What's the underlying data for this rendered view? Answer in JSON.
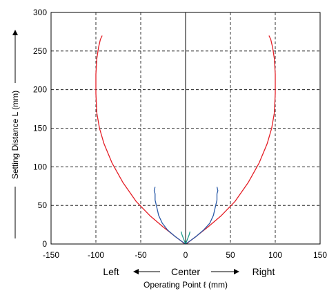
{
  "chart_data": {
    "type": "line",
    "xlabel": "Operating Point ℓ (mm)",
    "ylabel": "Setting Distance L (mm)",
    "xlim": [
      -150,
      150
    ],
    "ylim": [
      0,
      300
    ],
    "xticks": [
      -150,
      -100,
      -50,
      0,
      50,
      100,
      150
    ],
    "yticks": [
      0,
      50,
      100,
      150,
      200,
      250,
      300
    ],
    "grid": true,
    "direction_labels": {
      "left": "Left",
      "center": "Center",
      "right": "Right"
    },
    "series": [
      {
        "color": "#e41e26",
        "points": [
          [
            -1,
            0
          ],
          [
            -4,
            3
          ],
          [
            -12,
            10
          ],
          [
            -25,
            22
          ],
          [
            -40,
            37
          ],
          [
            -55,
            55
          ],
          [
            -70,
            80
          ],
          [
            -82,
            105
          ],
          [
            -91,
            130
          ],
          [
            -96,
            150
          ],
          [
            -99,
            170
          ],
          [
            -100,
            195
          ],
          [
            -100,
            220
          ],
          [
            -99,
            240
          ],
          [
            -97,
            255
          ],
          [
            -95,
            265
          ],
          [
            -93,
            270
          ]
        ]
      },
      {
        "color": "#e41e26",
        "points": [
          [
            1,
            0
          ],
          [
            4,
            3
          ],
          [
            12,
            10
          ],
          [
            25,
            22
          ],
          [
            40,
            37
          ],
          [
            55,
            55
          ],
          [
            70,
            80
          ],
          [
            82,
            105
          ],
          [
            91,
            130
          ],
          [
            96,
            150
          ],
          [
            99,
            170
          ],
          [
            100,
            195
          ],
          [
            100,
            220
          ],
          [
            99,
            240
          ],
          [
            97,
            255
          ],
          [
            95,
            265
          ],
          [
            93,
            270
          ]
        ]
      },
      {
        "color": "#2b5ba8",
        "points": [
          [
            0,
            0
          ],
          [
            -5,
            4
          ],
          [
            -12,
            10
          ],
          [
            -20,
            18
          ],
          [
            -26,
            27
          ],
          [
            -30,
            37
          ],
          [
            -32,
            47
          ],
          [
            -34,
            57
          ],
          [
            -34,
            65
          ],
          [
            -35,
            69
          ],
          [
            -34,
            74
          ]
        ]
      },
      {
        "color": "#2b5ba8",
        "points": [
          [
            0,
            0
          ],
          [
            5,
            4
          ],
          [
            12,
            10
          ],
          [
            20,
            18
          ],
          [
            27,
            27
          ],
          [
            31,
            37
          ],
          [
            33,
            47
          ],
          [
            35,
            57
          ],
          [
            35,
            65
          ],
          [
            36,
            69
          ],
          [
            35,
            74
          ]
        ]
      },
      {
        "color": "#1e9e8c",
        "points": [
          [
            -5,
            16
          ],
          [
            -4,
            12
          ],
          [
            -2,
            6
          ],
          [
            0,
            0
          ],
          [
            2,
            6
          ],
          [
            4,
            12
          ],
          [
            5,
            16
          ]
        ]
      }
    ]
  }
}
